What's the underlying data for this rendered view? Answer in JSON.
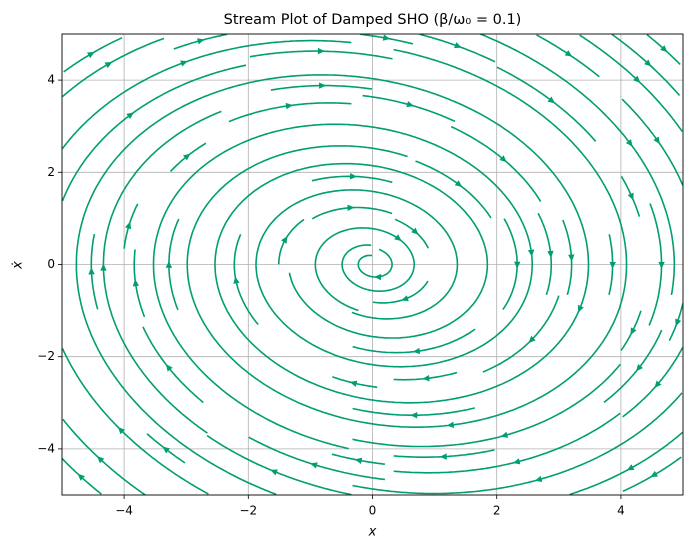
{
  "chart_data": {
    "type": "streamplot",
    "title": "Stream Plot of Damped SHO (β/ω₀ = 0.1)",
    "x_label": "x",
    "y_label": "ẋ",
    "beta_over_omega0": 0.1,
    "color": "#029e73",
    "xlim": [
      -5,
      5
    ],
    "ylim": [
      -5,
      5
    ],
    "xticks": [
      {
        "value": -4,
        "label": "−4"
      },
      {
        "value": -2,
        "label": "−2"
      },
      0,
      2,
      4
    ],
    "yticks": [
      {
        "value": -4,
        "label": "−4"
      },
      {
        "value": -2,
        "label": "−2"
      },
      0,
      2,
      4
    ],
    "grid": true
  }
}
